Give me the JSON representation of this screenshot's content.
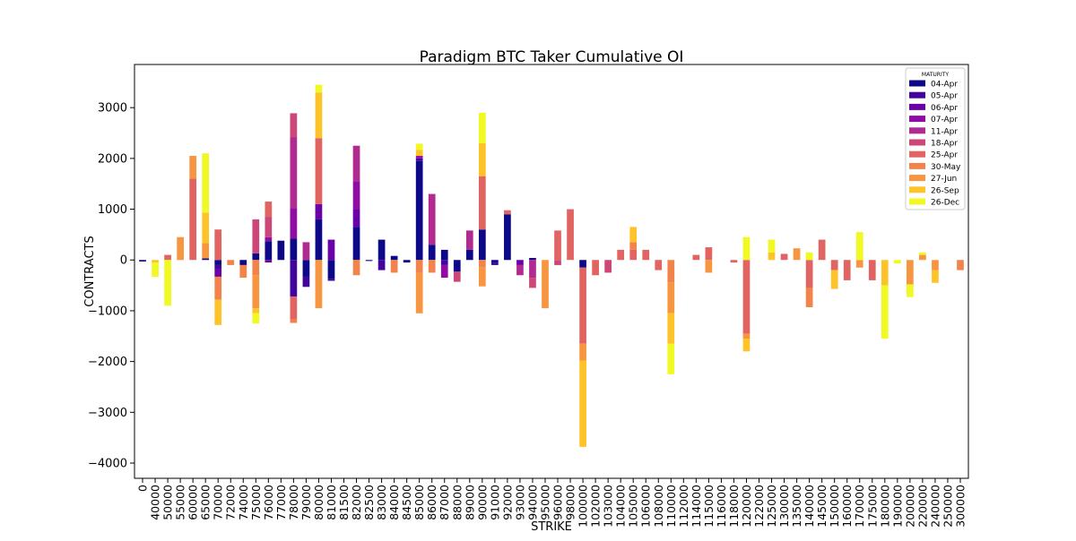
{
  "chart_data": {
    "type": "bar",
    "stacked": true,
    "title": "Paradigm BTC Taker Cumulative OI",
    "xlabel": "STRIKE",
    "ylabel": "CONTRACTS",
    "ylim": [
      -4300,
      3850
    ],
    "yticks": [
      -4000,
      -3000,
      -2000,
      -1000,
      0,
      1000,
      2000,
      3000
    ],
    "ytick_labels": [
      "−4000",
      "−3000",
      "−2000",
      "−1000",
      "0",
      "1000",
      "2000",
      "3000"
    ],
    "grid": false,
    "legend": {
      "title": "MATURITY",
      "placement": "top-right"
    },
    "categories": [
      "0",
      "40000",
      "50000",
      "55000",
      "60000",
      "65000",
      "70000",
      "72000",
      "74000",
      "75000",
      "76000",
      "77000",
      "78000",
      "79000",
      "80000",
      "81000",
      "81500",
      "82000",
      "82500",
      "83000",
      "84000",
      "84500",
      "85000",
      "86000",
      "87000",
      "88000",
      "89000",
      "90000",
      "91000",
      "92000",
      "93000",
      "94000",
      "95000",
      "96000",
      "98000",
      "100000",
      "102000",
      "103000",
      "104000",
      "105000",
      "106000",
      "108000",
      "110000",
      "112000",
      "114000",
      "115000",
      "116000",
      "118000",
      "120000",
      "122000",
      "125000",
      "130000",
      "135000",
      "140000",
      "145000",
      "150000",
      "160000",
      "170000",
      "175000",
      "180000",
      "190000",
      "200000",
      "220000",
      "240000",
      "250000",
      "300000"
    ],
    "series": [
      {
        "name": "04-Apr",
        "color": "#0d0887",
        "values": [
          -30,
          0,
          0,
          0,
          0,
          30,
          -100,
          0,
          -100,
          130,
          370,
          380,
          420,
          -330,
          800,
          -380,
          0,
          650,
          -20,
          400,
          80,
          -50,
          1950,
          300,
          200,
          -230,
          200,
          600,
          -50,
          900,
          0,
          40,
          0,
          0,
          0,
          -150,
          0,
          0,
          0,
          0,
          0,
          0,
          0,
          0,
          0,
          0,
          0,
          0,
          0,
          0,
          0,
          0,
          0,
          0,
          0,
          0,
          0,
          0,
          0,
          0,
          0,
          0,
          0,
          0,
          0,
          0
        ]
      },
      {
        "name": "05-Apr",
        "color": "#41049d",
        "values": [
          0,
          0,
          0,
          0,
          0,
          0,
          -80,
          0,
          0,
          0,
          0,
          0,
          -720,
          -200,
          0,
          -30,
          0,
          0,
          0,
          -200,
          0,
          0,
          50,
          0,
          -100,
          0,
          0,
          0,
          -50,
          0,
          0,
          0,
          0,
          0,
          0,
          0,
          0,
          0,
          0,
          0,
          0,
          0,
          0,
          0,
          0,
          0,
          0,
          0,
          0,
          0,
          0,
          0,
          0,
          0,
          0,
          0,
          0,
          0,
          0,
          0,
          0,
          0,
          0,
          0,
          0,
          0
        ]
      },
      {
        "name": "06-Apr",
        "color": "#6a00a8",
        "values": [
          0,
          0,
          0,
          0,
          0,
          0,
          -150,
          0,
          0,
          0,
          -50,
          0,
          0,
          0,
          300,
          400,
          0,
          350,
          0,
          0,
          0,
          0,
          0,
          0,
          0,
          0,
          0,
          0,
          0,
          0,
          -100,
          0,
          0,
          0,
          0,
          0,
          0,
          0,
          0,
          0,
          0,
          0,
          0,
          0,
          0,
          0,
          0,
          0,
          0,
          0,
          0,
          0,
          0,
          0,
          0,
          0,
          0,
          0,
          0,
          0,
          0,
          0,
          0,
          0,
          0,
          0
        ]
      },
      {
        "name": "07-Apr",
        "color": "#8f0da4",
        "values": [
          0,
          0,
          0,
          0,
          0,
          0,
          0,
          0,
          0,
          0,
          80,
          0,
          600,
          0,
          0,
          0,
          0,
          550,
          0,
          0,
          0,
          0,
          50,
          0,
          -250,
          0,
          0,
          0,
          0,
          0,
          0,
          0,
          0,
          0,
          0,
          0,
          0,
          0,
          0,
          0,
          0,
          0,
          0,
          0,
          0,
          0,
          0,
          0,
          0,
          0,
          0,
          0,
          0,
          0,
          0,
          0,
          0,
          0,
          0,
          0,
          0,
          0,
          0,
          0,
          0,
          0
        ]
      },
      {
        "name": "11-Apr",
        "color": "#b12a90",
        "values": [
          0,
          0,
          0,
          0,
          0,
          0,
          0,
          0,
          0,
          0,
          0,
          0,
          1400,
          350,
          0,
          0,
          0,
          700,
          0,
          0,
          0,
          0,
          0,
          1000,
          0,
          0,
          380,
          0,
          0,
          0,
          -200,
          -350,
          0,
          0,
          0,
          0,
          0,
          0,
          0,
          0,
          0,
          0,
          0,
          0,
          0,
          0,
          0,
          0,
          0,
          0,
          0,
          0,
          0,
          0,
          0,
          0,
          0,
          0,
          0,
          0,
          0,
          0,
          0,
          0,
          0,
          0
        ]
      },
      {
        "name": "18-Apr",
        "color": "#cc4778",
        "values": [
          0,
          0,
          0,
          0,
          0,
          0,
          0,
          0,
          0,
          670,
          400,
          0,
          470,
          0,
          0,
          0,
          0,
          0,
          0,
          0,
          0,
          0,
          0,
          0,
          0,
          -200,
          0,
          0,
          0,
          0,
          0,
          -200,
          0,
          -100,
          0,
          0,
          0,
          -250,
          0,
          0,
          0,
          0,
          0,
          0,
          0,
          0,
          0,
          0,
          0,
          0,
          0,
          0,
          0,
          0,
          0,
          0,
          0,
          0,
          0,
          0,
          0,
          0,
          0,
          0,
          0,
          0
        ]
      },
      {
        "name": "25-Apr",
        "color": "#e16462",
        "values": [
          0,
          0,
          100,
          0,
          1600,
          0,
          600,
          0,
          0,
          0,
          300,
          0,
          -450,
          0,
          1300,
          0,
          0,
          0,
          0,
          0,
          0,
          0,
          0,
          0,
          0,
          0,
          0,
          1050,
          0,
          80,
          0,
          0,
          0,
          580,
          1000,
          -1500,
          -300,
          0,
          200,
          200,
          200,
          -200,
          0,
          0,
          100,
          250,
          0,
          -50,
          -1450,
          0,
          0,
          120,
          0,
          -550,
          400,
          -200,
          -400,
          0,
          -400,
          0,
          0,
          0,
          0,
          0,
          0,
          0
        ]
      },
      {
        "name": "30-May",
        "color": "#f2844b",
        "values": [
          0,
          0,
          0,
          0,
          0,
          0,
          -450,
          -100,
          -250,
          -300,
          0,
          0,
          -70,
          0,
          0,
          0,
          0,
          -300,
          0,
          0,
          -250,
          0,
          -250,
          -250,
          0,
          0,
          0,
          -150,
          0,
          0,
          0,
          0,
          0,
          0,
          0,
          0,
          0,
          0,
          0,
          150,
          0,
          0,
          -450,
          0,
          0,
          0,
          0,
          0,
          0,
          0,
          0,
          0,
          0,
          -380,
          0,
          0,
          0,
          0,
          0,
          0,
          0,
          0,
          0,
          0,
          0,
          -200
        ]
      },
      {
        "name": "27-Jun",
        "color": "#f89540",
        "values": [
          0,
          0,
          0,
          450,
          450,
          300,
          0,
          0,
          0,
          -650,
          0,
          0,
          0,
          0,
          -950,
          0,
          0,
          0,
          0,
          0,
          0,
          0,
          -800,
          0,
          0,
          0,
          0,
          -370,
          0,
          0,
          0,
          0,
          -950,
          0,
          0,
          -330,
          0,
          0,
          0,
          0,
          0,
          0,
          -600,
          0,
          0,
          -250,
          0,
          0,
          -100,
          0,
          0,
          0,
          230,
          0,
          0,
          0,
          0,
          -150,
          0,
          0,
          0,
          -480,
          100,
          -200,
          0,
          0
        ]
      },
      {
        "name": "26-Sep",
        "color": "#fdc328",
        "values": [
          0,
          -50,
          0,
          0,
          0,
          600,
          -500,
          0,
          0,
          -100,
          0,
          0,
          0,
          0,
          900,
          0,
          0,
          0,
          0,
          0,
          0,
          0,
          120,
          0,
          0,
          0,
          0,
          650,
          0,
          0,
          0,
          0,
          0,
          0,
          0,
          -1700,
          0,
          0,
          0,
          300,
          0,
          0,
          -600,
          0,
          0,
          0,
          0,
          0,
          -250,
          0,
          150,
          0,
          0,
          0,
          0,
          -370,
          0,
          0,
          0,
          -500,
          0,
          0,
          0,
          -250,
          0,
          0
        ]
      },
      {
        "name": "26-Dec",
        "color": "#f0f921",
        "values": [
          0,
          -280,
          -900,
          0,
          0,
          1170,
          0,
          0,
          0,
          -200,
          0,
          0,
          0,
          0,
          150,
          0,
          0,
          0,
          0,
          0,
          0,
          0,
          120,
          0,
          0,
          0,
          0,
          600,
          0,
          0,
          0,
          0,
          0,
          0,
          0,
          0,
          0,
          0,
          0,
          0,
          0,
          0,
          -600,
          0,
          0,
          0,
          0,
          0,
          450,
          0,
          250,
          0,
          0,
          150,
          0,
          0,
          0,
          550,
          0,
          -1050,
          -70,
          -250,
          50,
          0,
          0,
          0
        ]
      }
    ]
  }
}
